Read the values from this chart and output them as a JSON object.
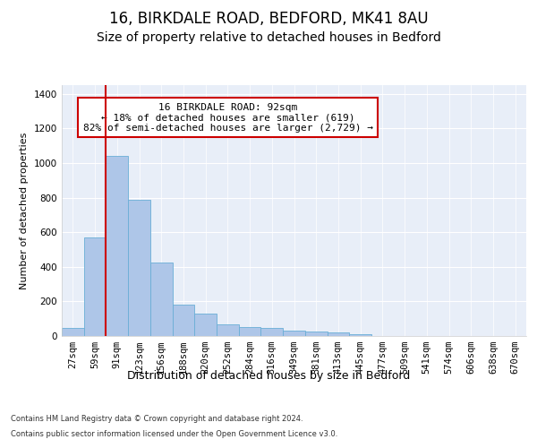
{
  "title1": "16, BIRKDALE ROAD, BEDFORD, MK41 8AU",
  "title2": "Size of property relative to detached houses in Bedford",
  "xlabel": "Distribution of detached houses by size in Bedford",
  "ylabel": "Number of detached properties",
  "categories": [
    "27sqm",
    "59sqm",
    "91sqm",
    "123sqm",
    "156sqm",
    "188sqm",
    "220sqm",
    "252sqm",
    "284sqm",
    "316sqm",
    "349sqm",
    "381sqm",
    "413sqm",
    "445sqm",
    "477sqm",
    "509sqm",
    "541sqm",
    "574sqm",
    "606sqm",
    "638sqm",
    "670sqm"
  ],
  "values": [
    45,
    570,
    1040,
    785,
    425,
    180,
    130,
    65,
    50,
    45,
    30,
    25,
    20,
    12,
    0,
    0,
    0,
    0,
    0,
    0,
    0
  ],
  "bar_color": "#aec6e8",
  "bar_edge_color": "#6aaed6",
  "red_line_x": 1.5,
  "annotation_text": "16 BIRKDALE ROAD: 92sqm\n← 18% of detached houses are smaller (619)\n82% of semi-detached houses are larger (2,729) →",
  "annotation_box_facecolor": "#ffffff",
  "annotation_border_color": "#cc0000",
  "red_line_color": "#cc0000",
  "ylim": [
    0,
    1450
  ],
  "yticks": [
    0,
    200,
    400,
    600,
    800,
    1000,
    1200,
    1400
  ],
  "bg_color": "#e8eef8",
  "grid_color": "#ffffff",
  "footer1": "Contains HM Land Registry data © Crown copyright and database right 2024.",
  "footer2": "Contains public sector information licensed under the Open Government Licence v3.0.",
  "title1_fontsize": 12,
  "title2_fontsize": 10,
  "xlabel_fontsize": 9,
  "ylabel_fontsize": 8,
  "tick_fontsize": 7.5,
  "footer_fontsize": 6,
  "annot_fontsize": 8
}
